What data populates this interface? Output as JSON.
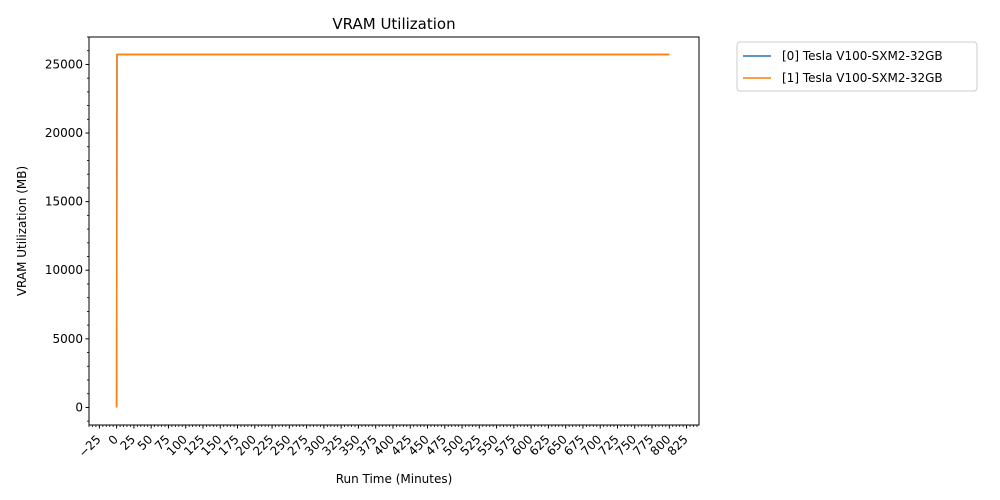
{
  "chart_data": {
    "type": "line",
    "title": "VRAM Utilization",
    "xlabel": "Run Time (Minutes)",
    "ylabel": "VRAM Utilization (MB)",
    "xlim": [
      -40,
      843
    ],
    "ylim": [
      -1280,
      27000
    ],
    "xticks": [
      -25,
      0,
      25,
      50,
      75,
      100,
      125,
      150,
      175,
      200,
      225,
      250,
      275,
      300,
      325,
      350,
      375,
      400,
      425,
      450,
      475,
      500,
      525,
      550,
      575,
      600,
      625,
      650,
      675,
      700,
      725,
      750,
      775,
      800,
      825
    ],
    "yticks": [
      0,
      5000,
      10000,
      15000,
      20000,
      25000
    ],
    "grid": false,
    "legend_position": "outside-top-right",
    "series": [
      {
        "name": "[0] Tesla V100-SXM2-32GB",
        "color": "#1f77b4",
        "x": [
          0,
          0.5,
          1,
          800
        ],
        "y": [
          0,
          25720,
          25720,
          25720
        ]
      },
      {
        "name": "[1] Tesla V100-SXM2-32GB",
        "color": "#ff7f0e",
        "x": [
          0,
          0.5,
          1,
          800
        ],
        "y": [
          0,
          25720,
          25720,
          25720
        ]
      }
    ]
  }
}
